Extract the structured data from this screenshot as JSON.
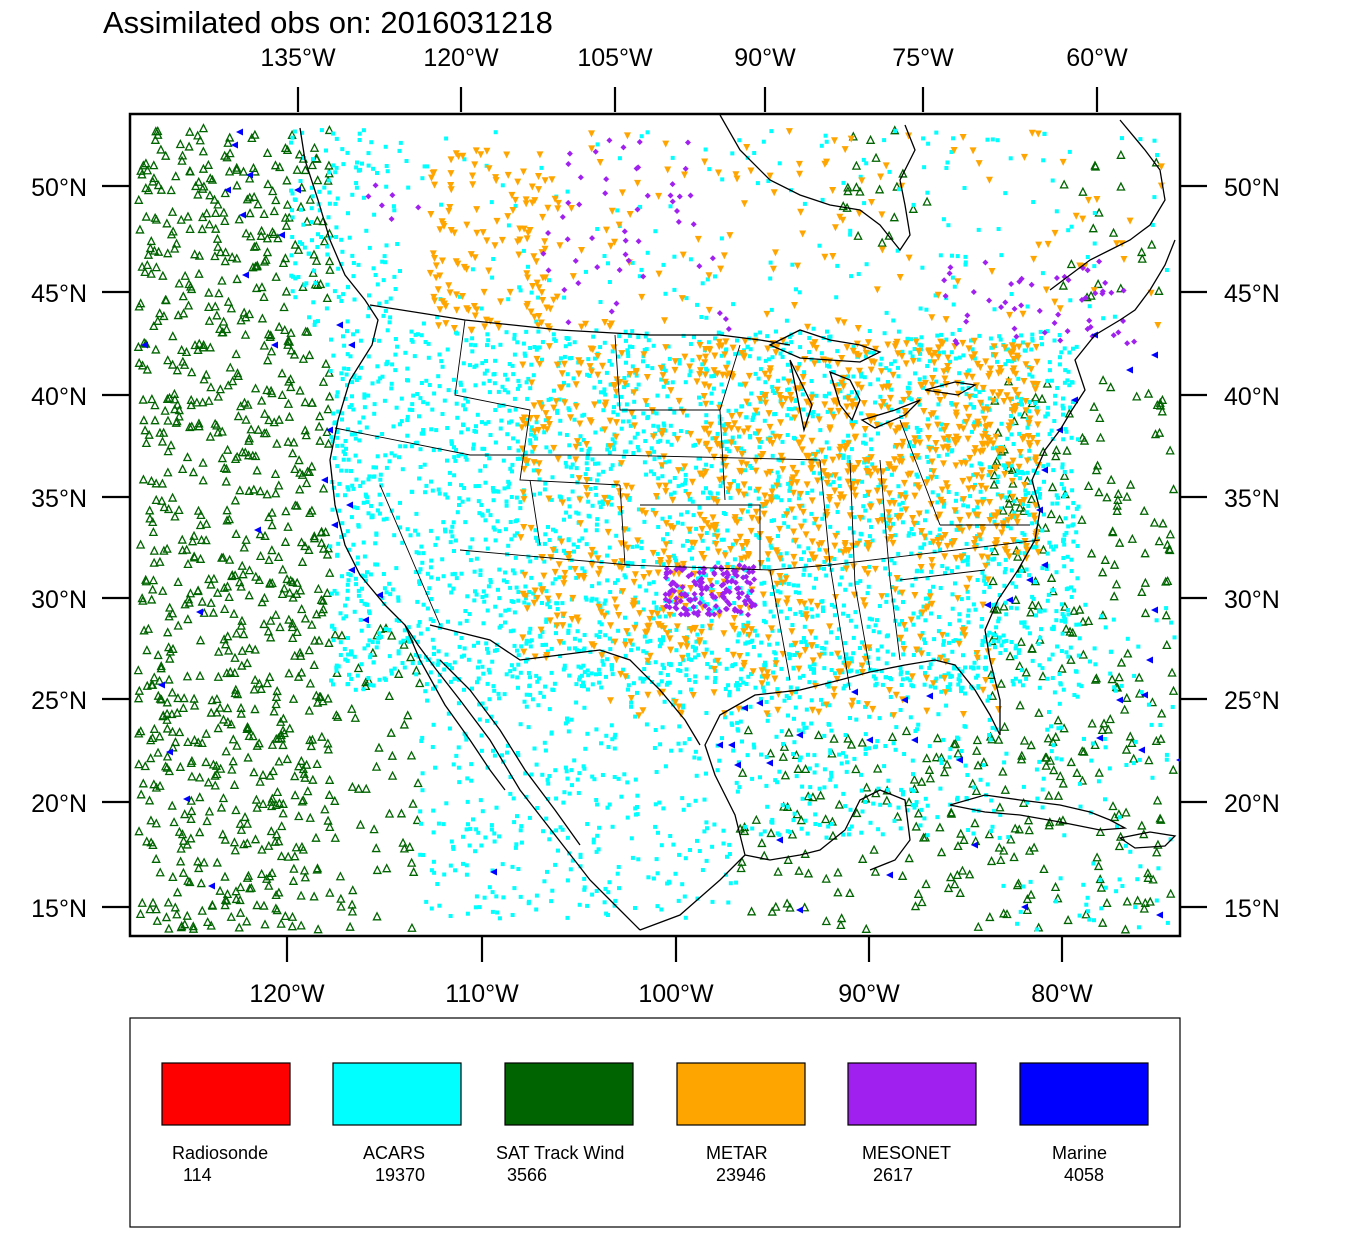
{
  "title": "Assimilated obs on: 2016031218",
  "map": {
    "top_lon_labels": [
      "135°W",
      "120°W",
      "105°W",
      "90°W",
      "75°W",
      "60°W"
    ],
    "bottom_lon_labels": [
      "120°W",
      "110°W",
      "100°W",
      "90°W",
      "80°W"
    ],
    "lat_labels": [
      "50°N",
      "45°N",
      "40°N",
      "35°N",
      "30°N",
      "25°N",
      "20°N",
      "15°N"
    ]
  },
  "legend": [
    {
      "name": "Radiosonde",
      "count": "114",
      "color": "#ff0000",
      "symbol": "none"
    },
    {
      "name": "ACARS",
      "count": "19370",
      "color": "#00ffff",
      "symbol": "square"
    },
    {
      "name": "SAT Track Wind",
      "count": "3566",
      "color": "#006400",
      "symbol": "triangle-up"
    },
    {
      "name": "METAR",
      "count": "23946",
      "color": "#ffa500",
      "symbol": "triangle-down"
    },
    {
      "name": "MESONET",
      "count": "2617",
      "color": "#a020f0",
      "symbol": "diamond"
    },
    {
      "name": "Marine",
      "count": "4058",
      "color": "#0000ff",
      "symbol": "triangle-left"
    }
  ]
}
